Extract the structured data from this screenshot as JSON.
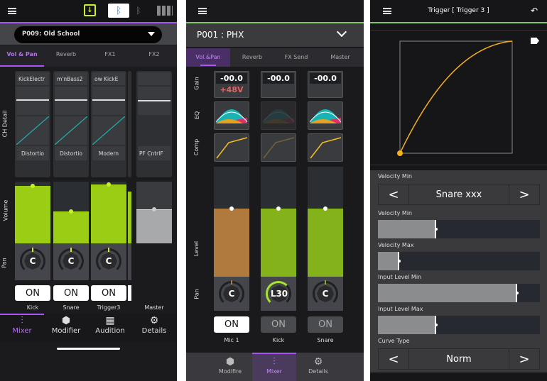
{
  "panel1": {
    "preset": "P009: Old School",
    "tabs": [
      "Vol & Pan",
      "Reverb",
      "FX1",
      "FX2"
    ],
    "section_labels": {
      "ch_detail": "CH Detail",
      "volume": "Volume",
      "pan": "Pan"
    },
    "channels": [
      {
        "name": "Kick",
        "top_label": "KickElectr",
        "bottom_label": "Distortio",
        "volume": 0.93,
        "pan": "C",
        "on": "ON"
      },
      {
        "name": "Snare",
        "top_label": "m'nBass2",
        "bottom_label": "Distortio",
        "volume": 0.52,
        "pan": "C",
        "on": "ON"
      },
      {
        "name": "Trigger3",
        "top_label": "ow   KickE",
        "bottom_label": "Modern",
        "volume": 0.95,
        "pan": "C",
        "on": "ON"
      }
    ],
    "master": {
      "name": "Master",
      "top_label": "",
      "bottom_label": "PF    CntrlF",
      "volume": 0.55
    },
    "nav": [
      {
        "label": "Mixer",
        "icon": "sliders-icon",
        "active": true
      },
      {
        "label": "Modifier",
        "icon": "hexagon-icon"
      },
      {
        "label": "Audition",
        "icon": "audition-icon"
      },
      {
        "label": "Details",
        "icon": "gear-icon"
      }
    ],
    "accent": "#a855f7",
    "volume_color": "#9acd14"
  },
  "panel2": {
    "preset": "P001 : PHX",
    "tabs": [
      "Vol.&Pan",
      "Reverb",
      "FX Send",
      "Master"
    ],
    "section_labels": {
      "gain": "Gain",
      "eq": "EQ",
      "comp": "Comp",
      "level": "Level",
      "pan": "Pan"
    },
    "channels": [
      {
        "name": "Mic 1",
        "gain": "-00.0",
        "phantom": "+48V",
        "level": 0.62,
        "pan": "C",
        "on": "ON",
        "on_active": true,
        "color": "#b07a3e"
      },
      {
        "name": "Kick",
        "gain": "-00.0",
        "phantom": "",
        "level": 0.62,
        "pan": "L30",
        "on": "ON",
        "on_active": false,
        "color": "#84b21a"
      },
      {
        "name": "Snare",
        "gain": "-00.0",
        "phantom": "",
        "level": 0.62,
        "pan": "C",
        "on": "ON",
        "on_active": false,
        "color": "#84b21a"
      }
    ],
    "nav": [
      {
        "label": "Modifire",
        "icon": "hexagon-icon"
      },
      {
        "label": "Mixer",
        "icon": "sliders-icon",
        "active": true
      },
      {
        "label": "Details",
        "icon": "gear-icon"
      }
    ]
  },
  "panel3": {
    "title": "Trigger [ Trigger 3 ]",
    "curve_color": "#f5b020",
    "fields": [
      {
        "label": "Velocity Min",
        "type": "stepper",
        "value": "Snare xxx"
      },
      {
        "label": "Velocity Min",
        "type": "slider",
        "value": 0.36
      },
      {
        "label": "Velocity Max",
        "type": "slider",
        "value": 0.13
      },
      {
        "label": "Input Level Min",
        "type": "slider",
        "value": 0.86
      },
      {
        "label": "Input Level Max",
        "type": "slider",
        "value": 0.36
      },
      {
        "label": "Curve Type",
        "type": "stepper",
        "value": "Norm"
      }
    ]
  }
}
